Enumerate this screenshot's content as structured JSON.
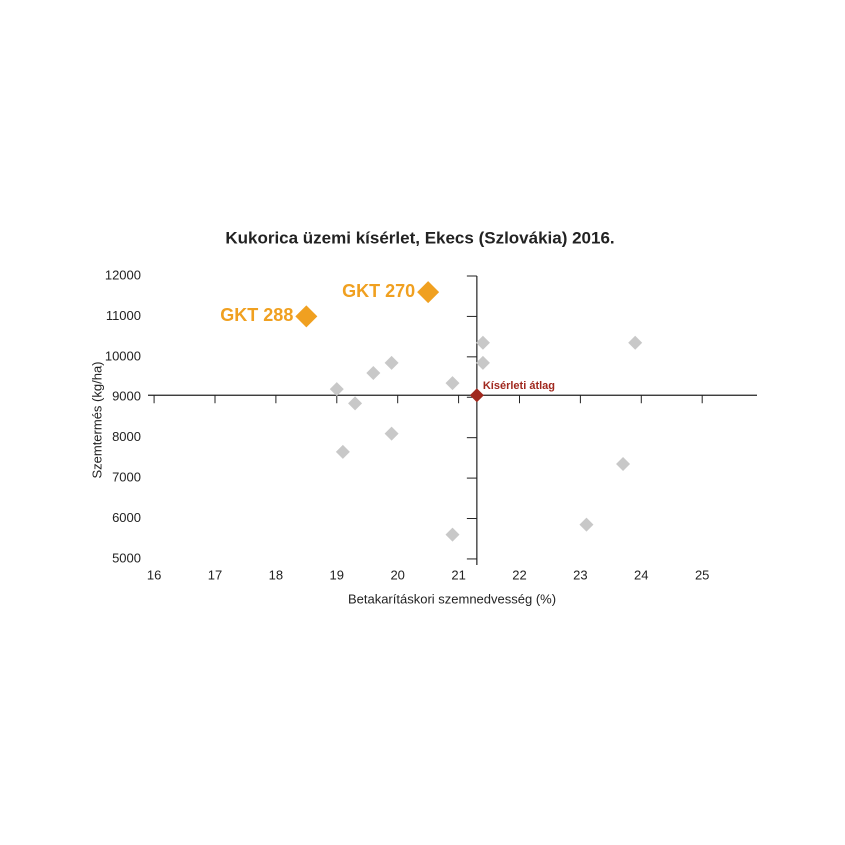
{
  "chart_data": {
    "type": "scatter",
    "title": "Kukorica üzemi kísérlet, Ekecs (Szlovákia) 2016.",
    "x_label": "Betakarításkori szemnedvesség (%)",
    "y_label": "Szemtermés (kg/ha)",
    "xlim": [
      15.9,
      25.9
    ],
    "ylim": [
      4850,
      12000
    ],
    "xticks": [
      16,
      17,
      18,
      19,
      20,
      21,
      22,
      23,
      24,
      25
    ],
    "yticks": [
      5000,
      6000,
      7000,
      8000,
      9000,
      10000,
      11000,
      12000
    ],
    "series": [
      {
        "color": "#c8c8c8",
        "x": [
          21.4,
          21.4,
          20.9,
          23.9,
          19.9,
          19.6,
          19.0,
          19.3,
          19.9,
          19.1,
          20.9,
          23.7,
          23.1
        ],
        "values": [
          10350,
          9850,
          9350,
          10350,
          9850,
          9600,
          9200,
          8850,
          8100,
          7650,
          5600,
          7350,
          5850
        ]
      },
      {
        "color": "#f0a020",
        "labels": [
          "GKT 270",
          "GKT 288"
        ],
        "x": [
          20.5,
          18.5
        ],
        "values": [
          11600,
          11000
        ]
      },
      {
        "name": "Kísérleti átlag",
        "color": "#a0281e",
        "x": [
          21.3
        ],
        "values": [
          9050
        ]
      }
    ]
  }
}
